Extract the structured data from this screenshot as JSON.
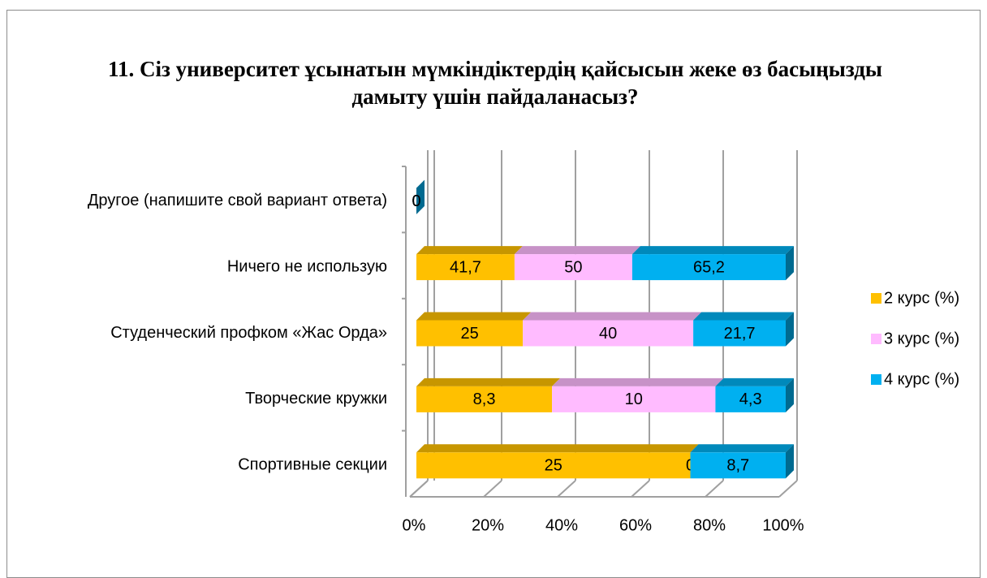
{
  "chart_data": {
    "type": "bar",
    "orientation": "horizontal",
    "stacking": "percent",
    "title": "11. Сіз университет ұсынатын мүмкіндіктердің қайсысын жеке өз басыңызды дамыту үшін пайдаланасыз?",
    "categories": [
      "Другое (напишите свой вариант ответа)",
      "Ничего не использую",
      "Студенческий профком «Жас Орда»",
      "Творческие кружки",
      "Спортивные секции"
    ],
    "series": [
      {
        "name": "2 курс (%)",
        "color": "#FFC000",
        "values": [
          0,
          41.7,
          25,
          8.3,
          25
        ],
        "value_labels": [
          "0",
          "41,7",
          "25",
          "8,3",
          "25"
        ]
      },
      {
        "name": "3 курс (%)",
        "color": "#FFBBFF",
        "values": [
          0,
          50,
          40,
          10,
          0
        ],
        "value_labels": [
          "0",
          "50",
          "40",
          "10",
          "0"
        ]
      },
      {
        "name": "4 курс (%)",
        "color": "#00B0F0",
        "values": [
          0,
          65.2,
          21.7,
          4.3,
          8.7
        ],
        "value_labels": [
          "0",
          "65,2",
          "21,7",
          "4,3",
          "8,7"
        ]
      }
    ],
    "xlim": [
      0,
      100
    ],
    "xticks": [
      {
        "value": 0,
        "label": "0%"
      },
      {
        "value": 20,
        "label": "20%"
      },
      {
        "value": 40,
        "label": "40%"
      },
      {
        "value": 60,
        "label": "60%"
      },
      {
        "value": 80,
        "label": "80%"
      },
      {
        "value": 100,
        "label": "100%"
      }
    ],
    "grid": true,
    "legend": "right"
  }
}
